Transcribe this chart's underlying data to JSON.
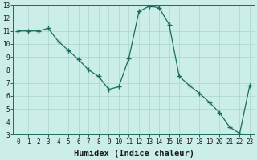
{
  "x": [
    0,
    1,
    2,
    3,
    4,
    5,
    6,
    7,
    8,
    9,
    10,
    11,
    12,
    13,
    14,
    15,
    16,
    17,
    18,
    19,
    20,
    21,
    22,
    23
  ],
  "y": [
    11,
    11,
    11,
    11.2,
    10.2,
    9.5,
    8.8,
    8.0,
    7.5,
    6.5,
    6.7,
    8.9,
    12.5,
    12.9,
    12.8,
    11.5,
    7.5,
    6.8,
    6.2,
    5.5,
    4.7,
    3.6,
    3.1,
    6.8
  ],
  "line_color": "#1a6b5e",
  "marker": "+",
  "marker_size": 4,
  "bg_color": "#cceee8",
  "grid_color": "#aad4cc",
  "xlabel": "Humidex (Indice chaleur)",
  "xlim": [
    -0.5,
    23.5
  ],
  "ylim": [
    3,
    13
  ],
  "xtick_labels": [
    "0",
    "1",
    "2",
    "3",
    "4",
    "5",
    "6",
    "7",
    "8",
    "9",
    "10",
    "11",
    "12",
    "13",
    "14",
    "15",
    "16",
    "17",
    "18",
    "19",
    "20",
    "21",
    "22",
    "23"
  ],
  "yticks": [
    3,
    4,
    5,
    6,
    7,
    8,
    9,
    10,
    11,
    12,
    13
  ],
  "tick_fontsize": 5.5,
  "xlabel_fontsize": 7.5
}
